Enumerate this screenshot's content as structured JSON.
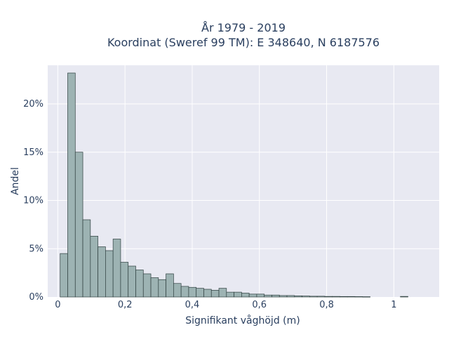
{
  "chart_data": {
    "type": "bar",
    "title_lines": [
      "År 1979 - 2019",
      "Koordinat (Sweref 99 TM): E 348640, N 6187576"
    ],
    "xlabel": "Signifikant våghöjd (m)",
    "ylabel": "Andel",
    "xlim": [
      -0.03,
      1.135
    ],
    "ylim": [
      0,
      0.24
    ],
    "x_ticks": [
      {
        "value": 0,
        "label": "0"
      },
      {
        "value": 0.2,
        "label": "0,2"
      },
      {
        "value": 0.4,
        "label": "0,4"
      },
      {
        "value": 0.6,
        "label": "0,6"
      },
      {
        "value": 0.8,
        "label": "0,8"
      },
      {
        "value": 1.0,
        "label": "1"
      }
    ],
    "y_ticks": [
      {
        "value": 0,
        "label": "0%"
      },
      {
        "value": 0.05,
        "label": "5%"
      },
      {
        "value": 0.1,
        "label": "10%"
      },
      {
        "value": 0.15,
        "label": "15%"
      },
      {
        "value": 0.2,
        "label": "20%"
      }
    ],
    "bin_width": 0.0225,
    "bin_start": 0.007,
    "values": [
      0.045,
      0.232,
      0.15,
      0.08,
      0.063,
      0.052,
      0.048,
      0.06,
      0.036,
      0.032,
      0.028,
      0.024,
      0.02,
      0.018,
      0.024,
      0.014,
      0.011,
      0.01,
      0.009,
      0.008,
      0.007,
      0.009,
      0.005,
      0.005,
      0.004,
      0.003,
      0.003,
      0.002,
      0.002,
      0.0015,
      0.0015,
      0.0012,
      0.001,
      0.0008,
      0.0008,
      0.0006,
      0.0006,
      0.0005,
      0.0005,
      0.0004,
      0.0003,
      0,
      0,
      0,
      0,
      0.0006,
      0,
      0,
      0,
      0,
      0,
      0,
      0,
      0
    ],
    "colors": {
      "bar_fill": "#9db3b3",
      "bar_stroke": "#2f3f3f",
      "plot_bg": "#e8e9f2",
      "grid": "#ffffff",
      "text": "#2a3f5f"
    },
    "grid": true
  }
}
